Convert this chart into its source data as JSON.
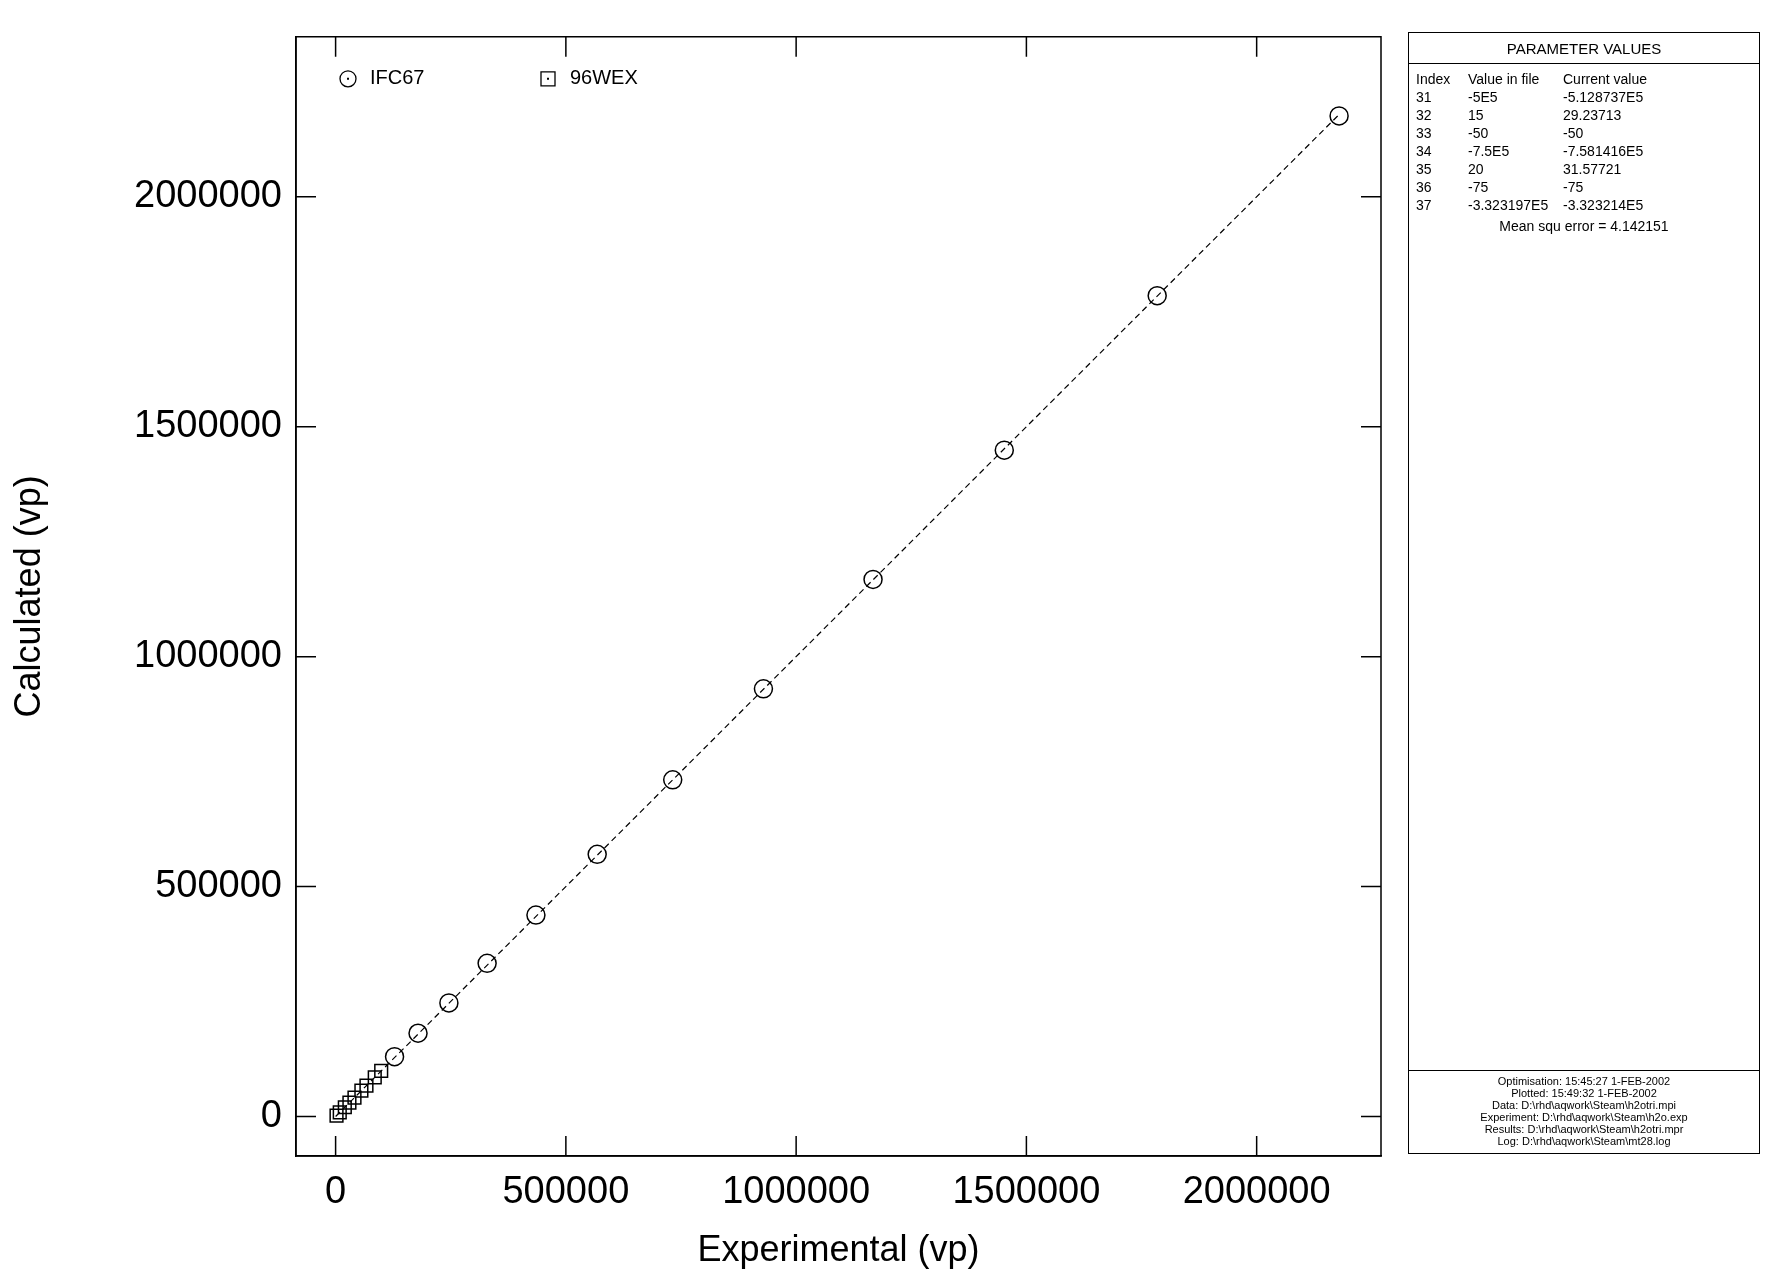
{
  "chart_data": {
    "type": "scatter",
    "xlabel": "Experimental (vp)",
    "ylabel": "Calculated (vp)",
    "xlim": [
      -86000,
      2270000
    ],
    "ylim": [
      -86000,
      2348000
    ],
    "xticks": [
      0,
      500000,
      1000000,
      1500000,
      2000000
    ],
    "yticks": [
      0,
      500000,
      1000000,
      1500000,
      2000000
    ],
    "grid": false,
    "legend": "top left",
    "series": [
      {
        "name": "IFC67",
        "marker": "circle",
        "color": "#000000",
        "x": [
          128000,
          179000,
          246000,
          329000,
          435000,
          568000,
          732000,
          929000,
          1167000,
          1452000,
          1784000,
          2179000
        ],
        "values": [
          130000,
          181000,
          247000,
          333000,
          438000,
          570000,
          732000,
          930000,
          1168000,
          1449000,
          1785000,
          2176000
        ]
      },
      {
        "name": "96WEX",
        "marker": "square",
        "color": "#000000",
        "x": [
          2000,
          9000,
          20000,
          30000,
          41000,
          56000,
          67000,
          85000,
          99000
        ],
        "values": [
          2000,
          9000,
          20000,
          30000,
          41000,
          56000,
          67000,
          85000,
          99000
        ]
      },
      {
        "type": "line",
        "marker": "none",
        "line_style": "dashed",
        "color": "#000000",
        "x": [
          0,
          2180000
        ],
        "values": [
          0,
          2180000
        ]
      }
    ],
    "annotations": [
      "PARAMETER VALUES",
      "Index   Value in file   Current value",
      "31   -5E5   -5.128737E5",
      "32   15   29.23713",
      "33   -50   -50",
      "34   -7.5E5   -7.581416E5",
      "35   20   31.57721",
      "36   -75   -75",
      "37   -3.323197E5   -3.323214E5",
      "Mean squ error = 4.142151",
      "Optimisation: 15:45:27  1-FEB-2002",
      "Plotted: 15:49:32  1-FEB-2002",
      "Data: D:\\rhd\\aqwork\\Steam\\h2otri.mpi",
      "Experiment: D:\\rhd\\aqwork\\Steam\\h2o.exp",
      "Results: D:\\rhd\\aqwork\\Steam\\h2otri.mpr",
      "Log: D:\\rhd\\aqwork\\Steam\\mt28.log"
    ]
  }
}
